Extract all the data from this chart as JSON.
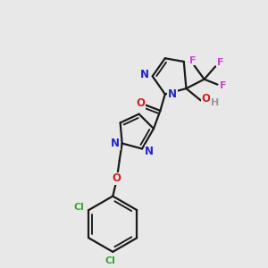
{
  "bg_color": "#e8e8e8",
  "bond_color": "#1a1a1a",
  "N_color": "#2222cc",
  "O_color": "#cc2222",
  "F_color": "#cc44cc",
  "Cl_color": "#33aa33",
  "H_color": "#999999",
  "bond_width": 1.6,
  "font_size_atom": 8.5,
  "fig_width": 3.0,
  "fig_height": 3.0,
  "dpi": 100,
  "xlim": [
    0,
    10
  ],
  "ylim": [
    0,
    10
  ]
}
